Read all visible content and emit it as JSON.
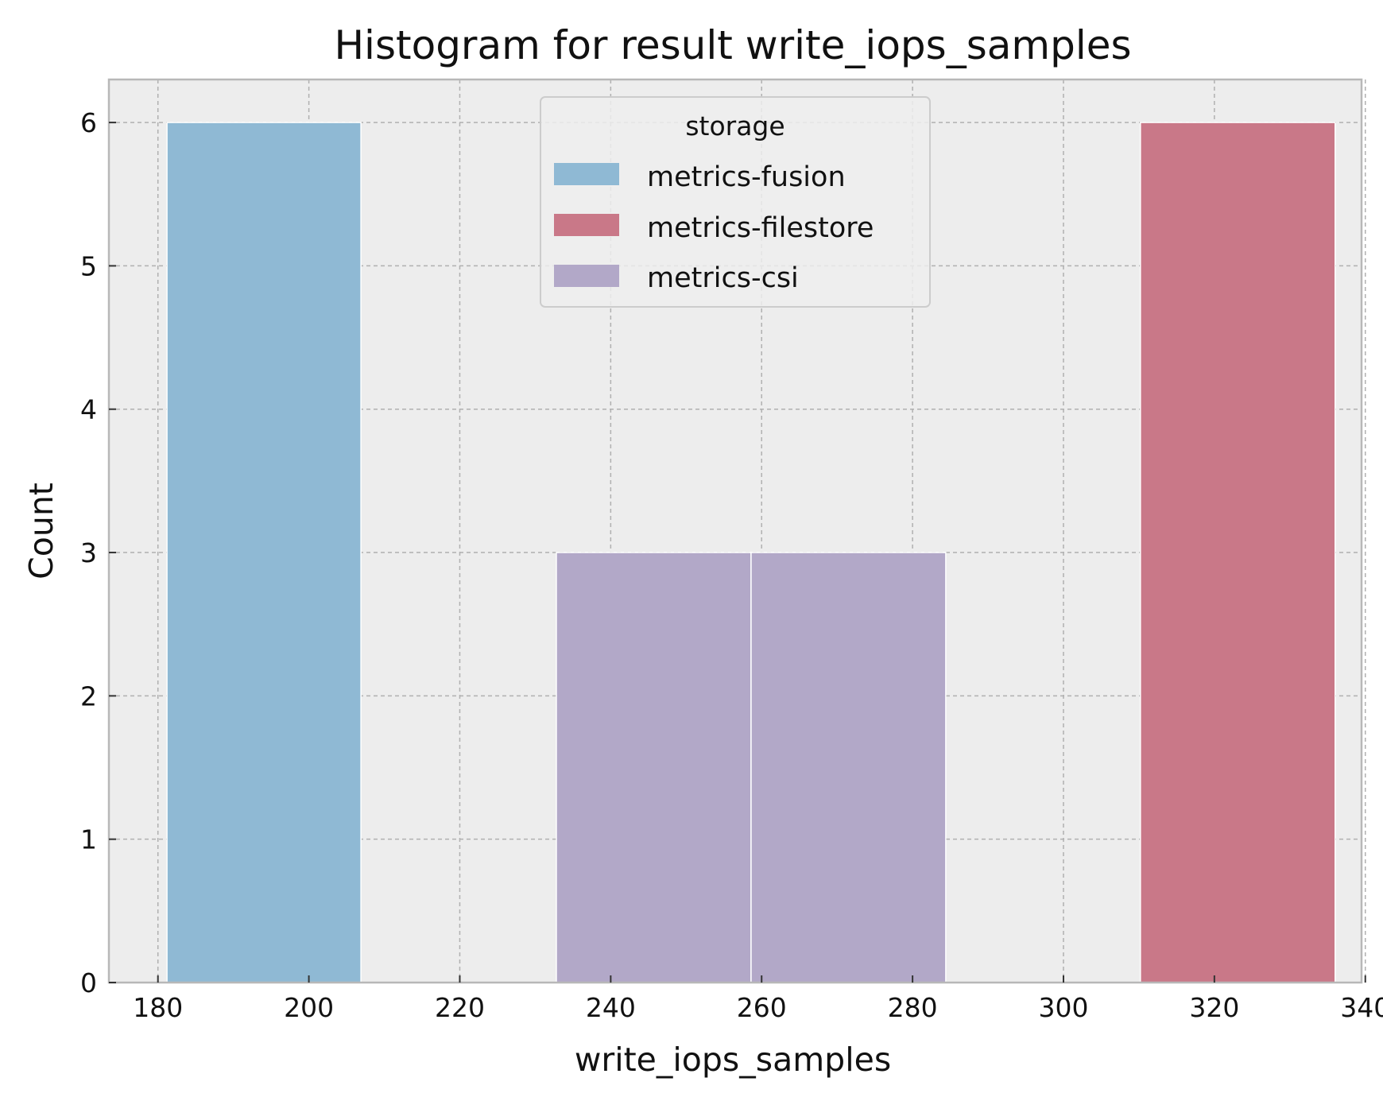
{
  "chart_data": {
    "type": "bar",
    "title": "Histogram for result write_iops_samples",
    "xlabel": "write_iops_samples",
    "ylabel": "Count",
    "xlim": [
      173.5,
      339.5
    ],
    "ylim": [
      0,
      6.3
    ],
    "xticks": [
      180,
      200,
      220,
      240,
      260,
      280,
      300,
      320,
      340
    ],
    "yticks": [
      0,
      1,
      2,
      3,
      4,
      5,
      6
    ],
    "grid": true,
    "legend": {
      "title": "storage",
      "placement": "top-center",
      "entries": [
        "metrics-fusion",
        "metrics-filestore",
        "metrics-csi"
      ]
    },
    "series": [
      {
        "name": "metrics-fusion",
        "color": "#8fb9d4",
        "bins": [
          {
            "x0": 181.2,
            "x1": 206.9,
            "count": 6
          }
        ]
      },
      {
        "name": "metrics-filestore",
        "color": "#c97888",
        "bins": [
          {
            "x0": 310.2,
            "x1": 336.0,
            "count": 6
          }
        ]
      },
      {
        "name": "metrics-csi",
        "color": "#b2a8c8",
        "bins": [
          {
            "x0": 232.8,
            "x1": 258.6,
            "count": 3
          },
          {
            "x0": 258.6,
            "x1": 284.4,
            "count": 3
          }
        ]
      }
    ]
  }
}
